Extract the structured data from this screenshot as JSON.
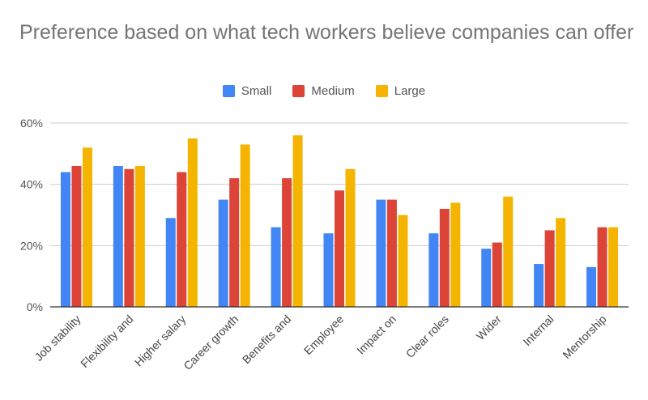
{
  "chart_data": {
    "type": "bar",
    "title": "Preference based on what tech workers believe companies can offer",
    "xlabel": "",
    "ylabel": "",
    "categories": [
      "Job stability",
      "Flexibility and",
      "Higher salary",
      "Career growth",
      "Benefits and",
      "Employee",
      "Impact on",
      "Clear roles",
      "Wider",
      "Internal",
      "Mentorship"
    ],
    "series": [
      {
        "name": "Small",
        "color": "#4285f4",
        "values": [
          44,
          46,
          29,
          35,
          26,
          24,
          35,
          24,
          19,
          14,
          13
        ]
      },
      {
        "name": "Medium",
        "color": "#db4437",
        "values": [
          46,
          45,
          44,
          42,
          42,
          38,
          35,
          32,
          21,
          25,
          26
        ]
      },
      {
        "name": "Large",
        "color": "#f4b400",
        "values": [
          52,
          46,
          55,
          53,
          56,
          45,
          30,
          34,
          36,
          29,
          26
        ]
      }
    ],
    "ylim": [
      0,
      60
    ],
    "yticks": [
      0,
      20,
      40,
      60
    ],
    "ytick_labels": [
      "0%",
      "20%",
      "40%",
      "60%"
    ],
    "legend_position": "top",
    "grid": true
  }
}
